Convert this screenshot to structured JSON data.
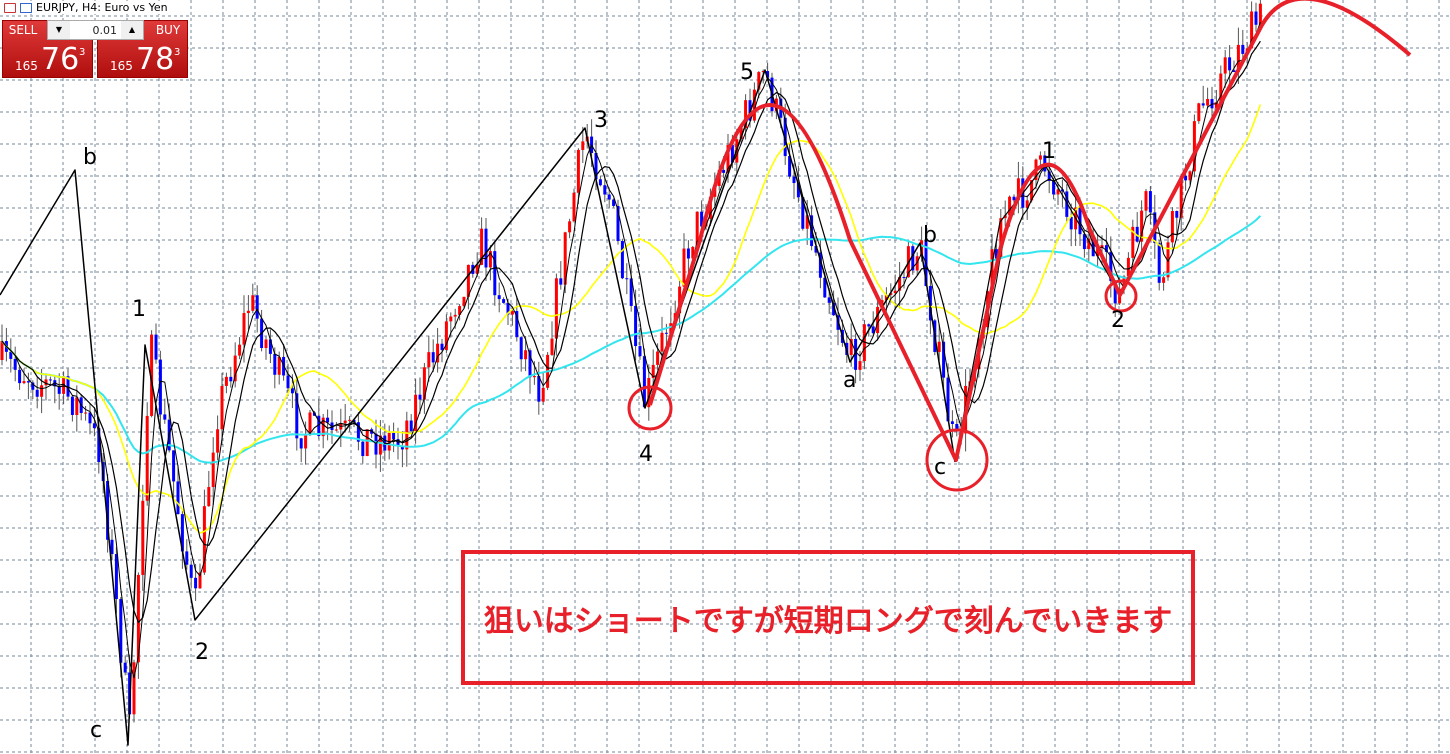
{
  "window": {
    "title": "EURJPY, H4:  Euro vs Yen"
  },
  "trade_panel": {
    "sell_label": "SELL",
    "buy_label": "BUY",
    "lot": "0.01",
    "sell_price": {
      "prefix": "165",
      "big": "76",
      "sup": "3"
    },
    "buy_price": {
      "prefix": "165",
      "big": "78",
      "sup": "3"
    }
  },
  "wave_labels": [
    "b",
    "1",
    "c",
    "2",
    "3",
    "4",
    "5",
    "a",
    "b",
    "c",
    "1",
    "2"
  ],
  "note": "狙いはショートですが短期ロングで刻んでいきます",
  "colors": {
    "bull": "#ff0000",
    "bear": "#0000ff",
    "ma_fast": "#000000",
    "ma_mid": "#ffff00",
    "ma_slow": "#33e5ee",
    "annotation": "#e8202a",
    "grid": "#778899"
  }
}
